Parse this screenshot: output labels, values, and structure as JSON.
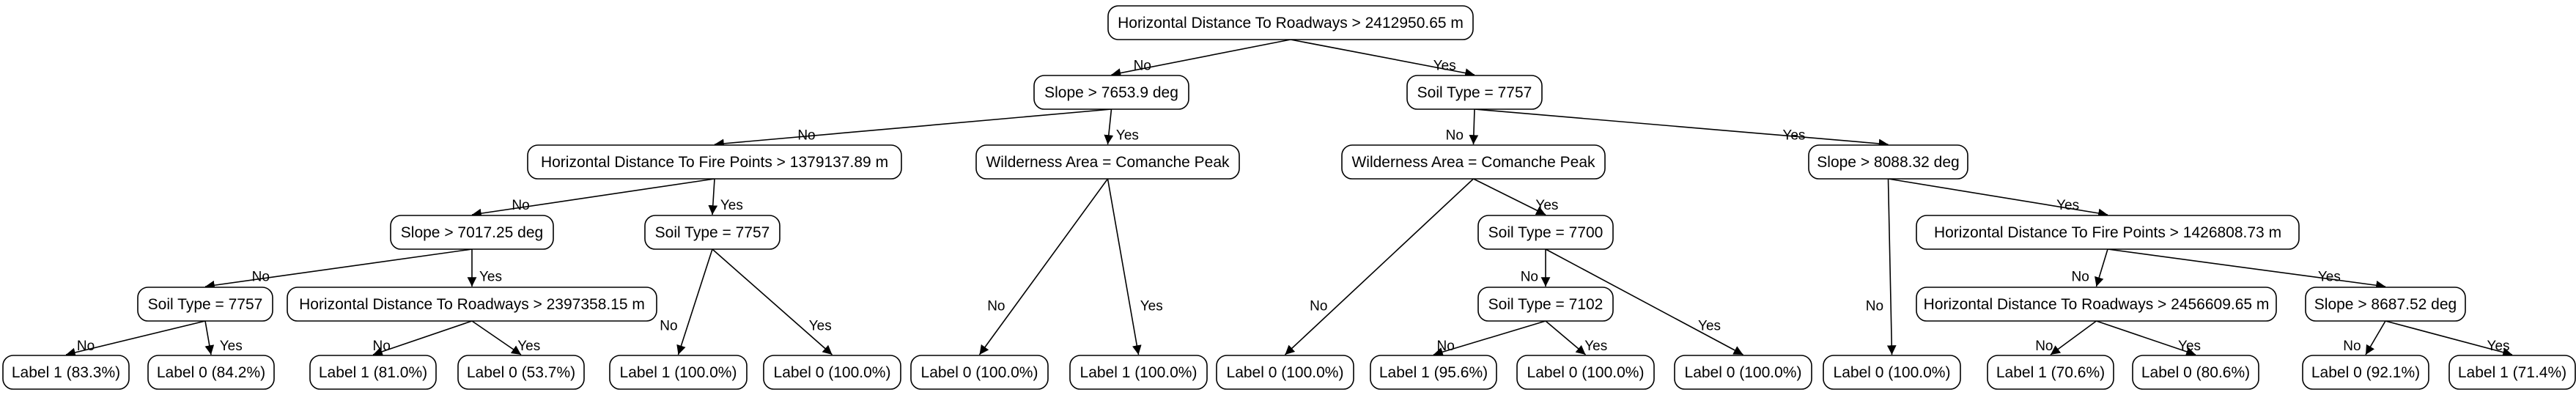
{
  "tree": {
    "nodes": [
      {
        "id": "n0",
        "text": "Horizontal Distance To Roadways > 2412950.65 m"
      },
      {
        "id": "n1",
        "text": "Slope > 7653.9 deg"
      },
      {
        "id": "n2",
        "text": "Soil Type = 7757"
      },
      {
        "id": "n3",
        "text": "Horizontal Distance To Fire Points > 1379137.89 m"
      },
      {
        "id": "n4",
        "text": "Wilderness Area = Comanche Peak"
      },
      {
        "id": "n5",
        "text": "Wilderness Area = Comanche Peak"
      },
      {
        "id": "n6",
        "text": "Slope > 8088.32 deg"
      },
      {
        "id": "n7",
        "text": "Slope > 7017.25 deg"
      },
      {
        "id": "n8",
        "text": "Soil Type = 7757"
      },
      {
        "id": "n9",
        "text": "Soil Type = 7700"
      },
      {
        "id": "n10",
        "text": "Horizontal Distance To Fire Points > 1426808.73 m"
      },
      {
        "id": "n11",
        "text": "Soil Type = 7757"
      },
      {
        "id": "n12",
        "text": "Horizontal Distance To Roadways > 2397358.15 m"
      },
      {
        "id": "n13",
        "text": "Soil Type = 7102"
      },
      {
        "id": "n14",
        "text": "Horizontal Distance To Roadways > 2456609.65 m"
      },
      {
        "id": "n15",
        "text": "Slope > 8687.52 deg"
      },
      {
        "id": "l0",
        "text": "Label 1 (83.3%)"
      },
      {
        "id": "l1",
        "text": "Label 0 (84.2%)"
      },
      {
        "id": "l2",
        "text": "Label 1 (81.0%)"
      },
      {
        "id": "l3",
        "text": "Label 0 (53.7%)"
      },
      {
        "id": "l4",
        "text": "Label 1 (100.0%)"
      },
      {
        "id": "l5",
        "text": "Label 0 (100.0%)"
      },
      {
        "id": "l6",
        "text": "Label 0 (100.0%)"
      },
      {
        "id": "l7",
        "text": "Label 1 (100.0%)"
      },
      {
        "id": "l8",
        "text": "Label 0 (100.0%)"
      },
      {
        "id": "l9",
        "text": "Label 1 (95.6%)"
      },
      {
        "id": "l10",
        "text": "Label 0 (100.0%)"
      },
      {
        "id": "l11",
        "text": "Label 0 (100.0%)"
      },
      {
        "id": "l12",
        "text": "Label 0 (100.0%)"
      },
      {
        "id": "l13",
        "text": "Label 1 (70.6%)"
      },
      {
        "id": "l14",
        "text": "Label 0 (80.6%)"
      },
      {
        "id": "l15",
        "text": "Label 0 (92.1%)"
      },
      {
        "id": "l16",
        "text": "Label 1 (71.4%)"
      }
    ],
    "edges": [
      {
        "from": "n0",
        "to": "n1",
        "label": "No"
      },
      {
        "from": "n0",
        "to": "n2",
        "label": "Yes"
      },
      {
        "from": "n1",
        "to": "n3",
        "label": "No"
      },
      {
        "from": "n1",
        "to": "n4",
        "label": "Yes"
      },
      {
        "from": "n2",
        "to": "n5",
        "label": "No"
      },
      {
        "from": "n2",
        "to": "n6",
        "label": "Yes"
      },
      {
        "from": "n3",
        "to": "n7",
        "label": "No"
      },
      {
        "from": "n3",
        "to": "n8",
        "label": "Yes"
      },
      {
        "from": "n4",
        "to": "l6",
        "label": "No"
      },
      {
        "from": "n4",
        "to": "l7",
        "label": "Yes"
      },
      {
        "from": "n5",
        "to": "l8",
        "label": "No"
      },
      {
        "from": "n5",
        "to": "n9",
        "label": "Yes"
      },
      {
        "from": "n6",
        "to": "l12",
        "label": "No"
      },
      {
        "from": "n6",
        "to": "n10",
        "label": "Yes"
      },
      {
        "from": "n7",
        "to": "n11",
        "label": "No"
      },
      {
        "from": "n7",
        "to": "n12",
        "label": "Yes"
      },
      {
        "from": "n8",
        "to": "l4",
        "label": "No"
      },
      {
        "from": "n8",
        "to": "l5",
        "label": "Yes"
      },
      {
        "from": "n9",
        "to": "n13",
        "label": "No"
      },
      {
        "from": "n9",
        "to": "l11",
        "label": "Yes"
      },
      {
        "from": "n10",
        "to": "n14",
        "label": "No"
      },
      {
        "from": "n10",
        "to": "n15",
        "label": "Yes"
      },
      {
        "from": "n11",
        "to": "l0",
        "label": "No"
      },
      {
        "from": "n11",
        "to": "l1",
        "label": "Yes"
      },
      {
        "from": "n12",
        "to": "l2",
        "label": "No"
      },
      {
        "from": "n12",
        "to": "l3",
        "label": "Yes"
      },
      {
        "from": "n13",
        "to": "l9",
        "label": "No"
      },
      {
        "from": "n13",
        "to": "l10",
        "label": "Yes"
      },
      {
        "from": "n14",
        "to": "l13",
        "label": "No"
      },
      {
        "from": "n14",
        "to": "l14",
        "label": "Yes"
      },
      {
        "from": "n15",
        "to": "l15",
        "label": "No"
      },
      {
        "from": "n15",
        "to": "l16",
        "label": "Yes"
      }
    ]
  },
  "colors": {
    "node_border": "#000000",
    "node_fill": "#ffffff",
    "edge": "#000000",
    "text": "#000000",
    "background": "#ffffff"
  }
}
